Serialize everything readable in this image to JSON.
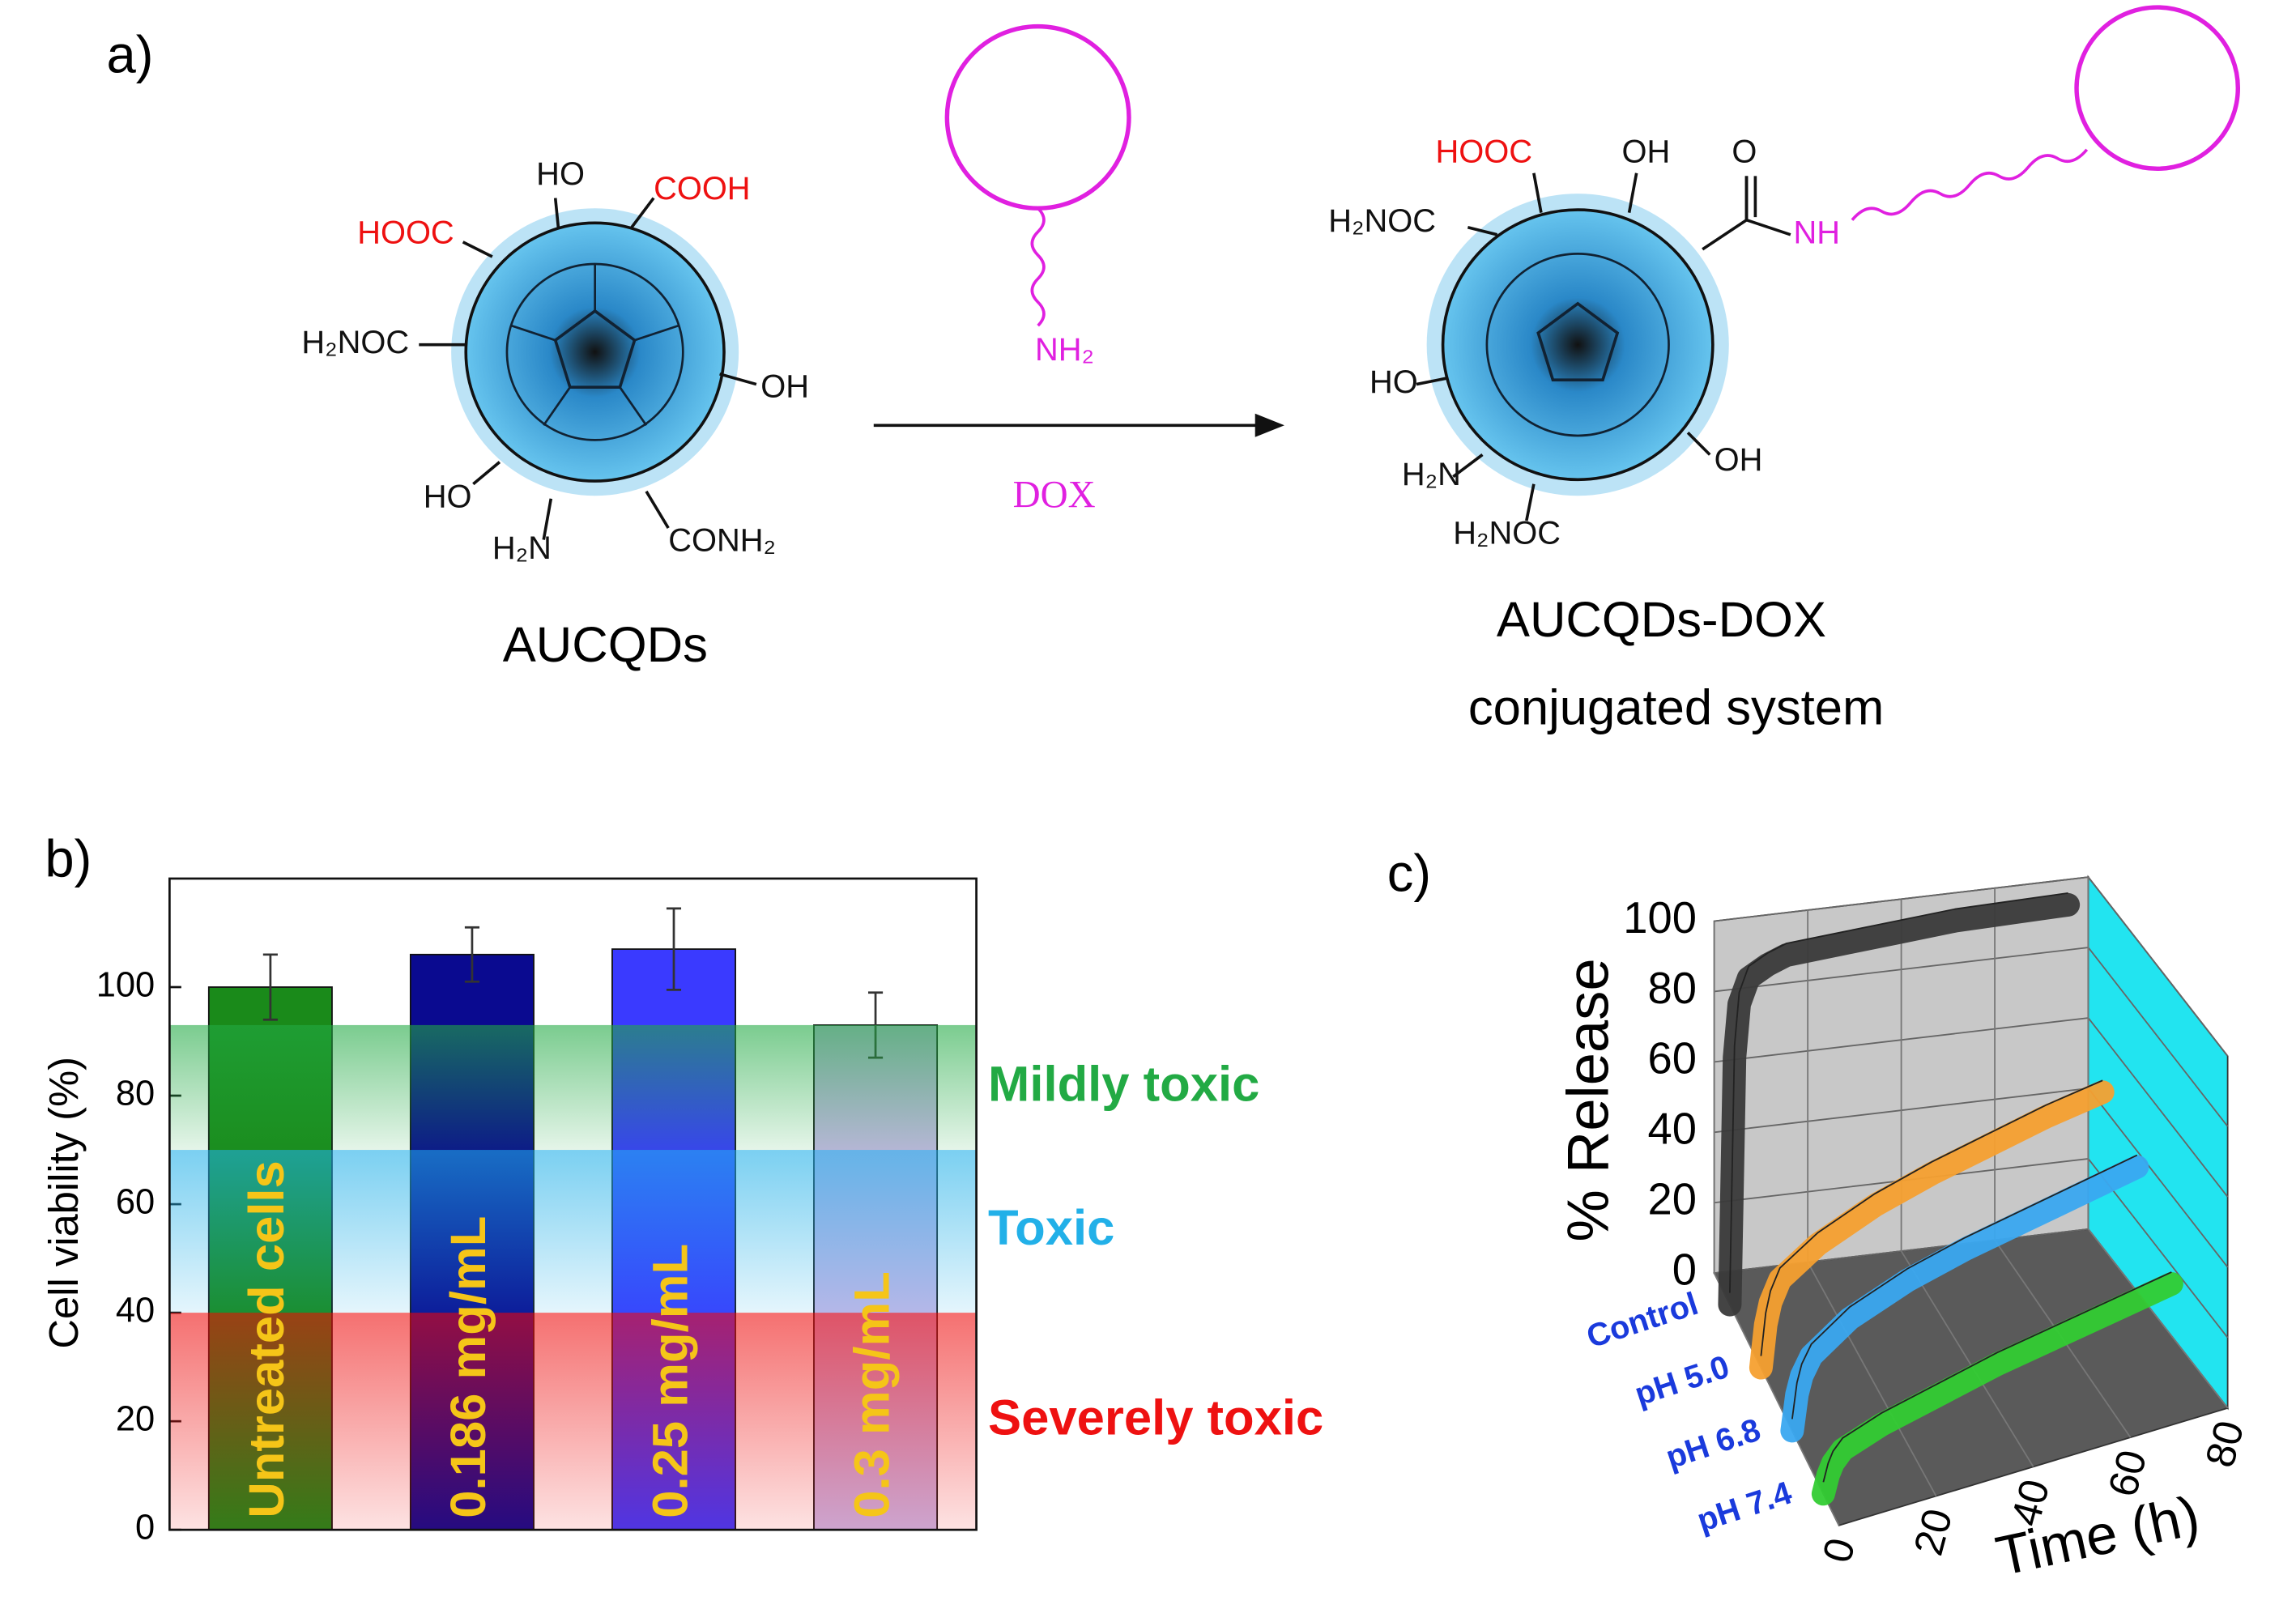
{
  "diagram": {
    "label": "a)",
    "left": {
      "name": "AUCQDs",
      "groups": [
        "HO",
        "COOH",
        "HOOC",
        "H₂NOC",
        "OH",
        "HO",
        "H₂N",
        "CONH₂"
      ]
    },
    "reagent": {
      "group": "NH₂",
      "name": "DOX"
    },
    "right": {
      "name": [
        "AUCQDs-DOX",
        "conjugated system"
      ],
      "groups": [
        "HOOC",
        "OH",
        "O",
        "H₂NOC",
        "NH",
        "HO",
        "H₂N",
        "OH",
        "H₂NOC"
      ]
    }
  },
  "chart_data": [
    {
      "type": "bar",
      "panel_label": "b)",
      "y_label": "Cell viability (%)",
      "categories": [
        "Untreated cells",
        "0.186 mg/mL",
        "0.25 mg/mL",
        "0.3 mg/mL"
      ],
      "values": [
        100,
        106,
        107,
        93
      ],
      "errors": [
        6,
        5,
        7.5,
        6
      ],
      "colors": [
        "#1a8a1a",
        "#0a0a90",
        "#3a3aff",
        "#c8b8e8"
      ],
      "ylim": [
        0,
        120
      ],
      "yticks": [
        0,
        20,
        40,
        60,
        80,
        100
      ],
      "bands": [
        {
          "name": "Mildly toxic",
          "range": [
            70,
            93
          ],
          "color": "#22aa44"
        },
        {
          "name": "Toxic",
          "range": [
            40,
            70
          ],
          "color": "#22b0e8"
        },
        {
          "name": "Severely toxic",
          "range": [
            0,
            40
          ],
          "color": "#ee1111"
        }
      ]
    },
    {
      "type": "waterfall",
      "panel_label": "c)",
      "y_label": "% Release",
      "x_label": "Time (h)",
      "x": [
        0,
        1,
        2,
        4,
        8,
        12,
        24,
        36,
        48,
        60,
        72
      ],
      "xlim": [
        0,
        80
      ],
      "xticks": [
        0,
        20,
        40,
        60,
        80
      ],
      "ylim": [
        0,
        100
      ],
      "yticks": [
        0,
        20,
        40,
        60,
        80,
        100
      ],
      "series": [
        {
          "name": "Control",
          "color": "#3a3a3a",
          "values": [
            0,
            70,
            85,
            92,
            95,
            97,
            98,
            99,
            100,
            100,
            100
          ]
        },
        {
          "name": "pH 5.0",
          "color": "#f5a030",
          "values": [
            0,
            12,
            18,
            24,
            28,
            32,
            40,
            46,
            51,
            56,
            60
          ]
        },
        {
          "name": "pH 6.8",
          "color": "#3aa8f0",
          "values": [
            0,
            10,
            15,
            20,
            24,
            28,
            35,
            40,
            44,
            48,
            52
          ]
        },
        {
          "name": "pH 7.4",
          "color": "#33cc33",
          "values": [
            0,
            5,
            8,
            11,
            13,
            15,
            19,
            23,
            26,
            29,
            32
          ]
        }
      ]
    }
  ]
}
